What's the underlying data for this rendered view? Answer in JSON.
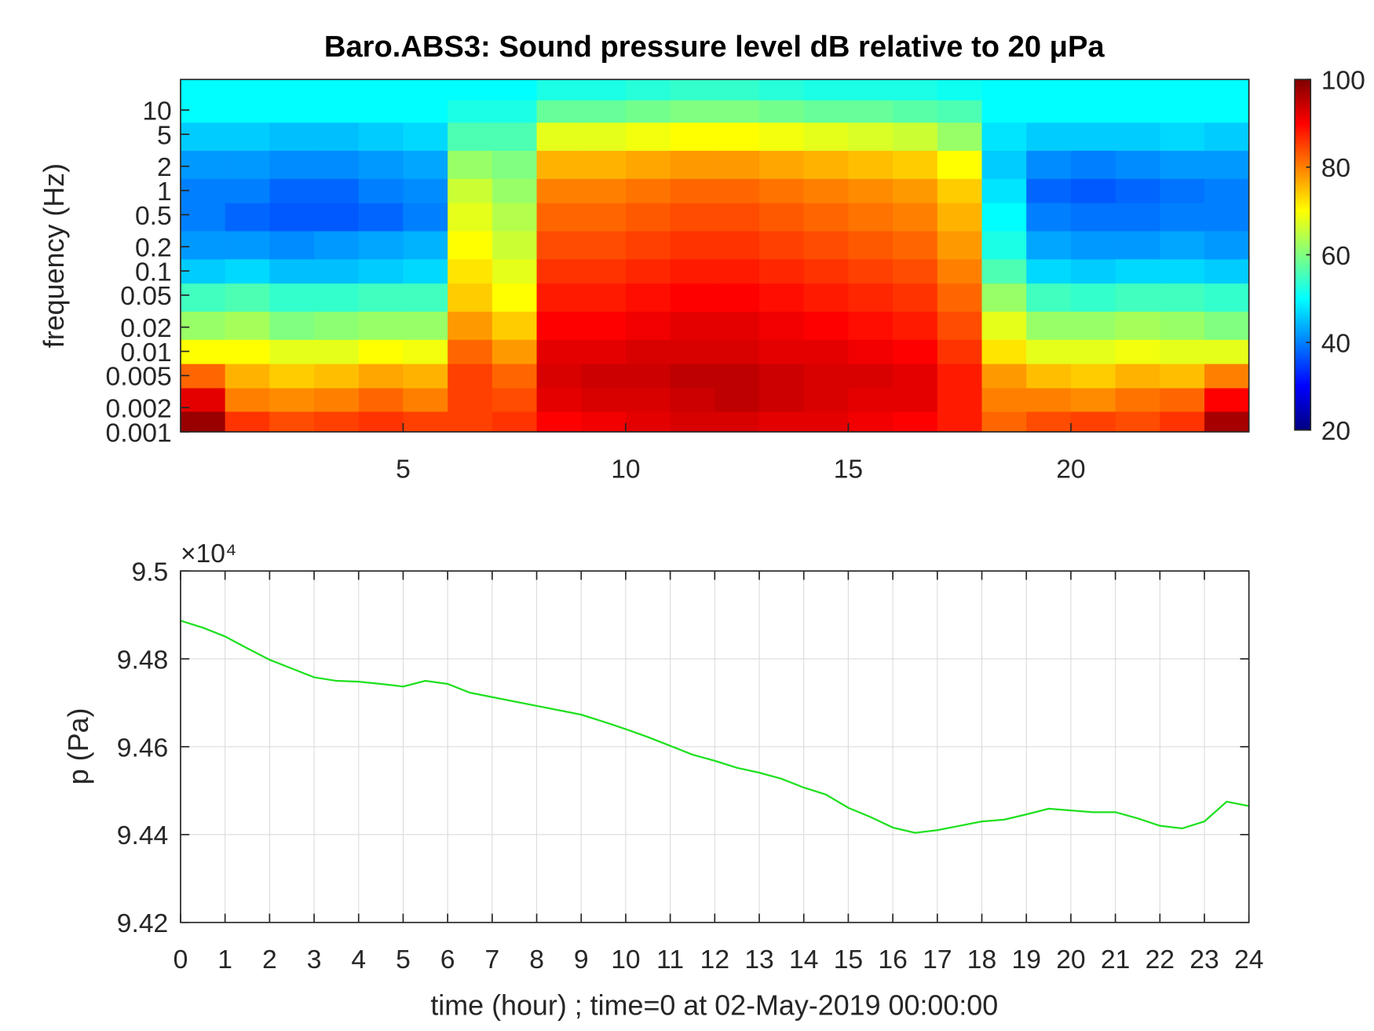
{
  "chart_data": [
    {
      "type": "heatmap",
      "title": "Baro.ABS3: Sound pressure level dB relative to 20 μPa",
      "y_label": "frequency (Hz)",
      "colormap": "jet",
      "x": [
        0.5,
        1.5,
        2.5,
        3.5,
        4.5,
        5.5,
        6.5,
        7.5,
        8.5,
        9.5,
        10.5,
        11.5,
        12.5,
        13.5,
        14.5,
        15.5,
        16.5,
        17.5,
        18.5,
        19.5,
        20.5,
        21.5,
        22.5,
        23.5
      ],
      "y": [
        0.0013,
        0.0025,
        0.005,
        0.01,
        0.02,
        0.05,
        0.1,
        0.2,
        0.5,
        1,
        2,
        5,
        10,
        18
      ],
      "z": [
        [
          98,
          86,
          84,
          85,
          86,
          85,
          85,
          86,
          90,
          91,
          92,
          93,
          93,
          92,
          92,
          91,
          90,
          88,
          82,
          84,
          85,
          84,
          86,
          97
        ],
        [
          92,
          80,
          79,
          80,
          82,
          80,
          85,
          84,
          92,
          93,
          93,
          94,
          95,
          94,
          93,
          92,
          92,
          88,
          80,
          80,
          79,
          81,
          82,
          90
        ],
        [
          82,
          76,
          74,
          75,
          77,
          76,
          85,
          82,
          93,
          94,
          94,
          95,
          95,
          94,
          93,
          93,
          92,
          88,
          78,
          75,
          74,
          76,
          75,
          80
        ],
        [
          70,
          70,
          68,
          68,
          70,
          69,
          82,
          78,
          92,
          92,
          93,
          93,
          93,
          92,
          92,
          91,
          90,
          86,
          72,
          68,
          68,
          69,
          68,
          68
        ],
        [
          62,
          63,
          60,
          61,
          62,
          62,
          78,
          74,
          90,
          90,
          91,
          92,
          92,
          91,
          90,
          89,
          88,
          84,
          68,
          62,
          62,
          63,
          62,
          60
        ],
        [
          55,
          56,
          54,
          54,
          55,
          55,
          74,
          70,
          88,
          88,
          89,
          90,
          90,
          89,
          88,
          87,
          86,
          82,
          62,
          55,
          54,
          55,
          55,
          54
        ],
        [
          46,
          47,
          45,
          45,
          46,
          47,
          72,
          68,
          86,
          86,
          87,
          88,
          88,
          87,
          86,
          85,
          84,
          80,
          56,
          47,
          46,
          47,
          47,
          46
        ],
        [
          42,
          42,
          41,
          42,
          43,
          44,
          70,
          66,
          84,
          84,
          85,
          86,
          86,
          85,
          84,
          83,
          82,
          78,
          52,
          43,
          42,
          42,
          43,
          42
        ],
        [
          40,
          38,
          37,
          37,
          38,
          40,
          68,
          64,
          82,
          82,
          83,
          84,
          84,
          83,
          82,
          81,
          80,
          76,
          50,
          40,
          39,
          39,
          40,
          40
        ],
        [
          40,
          40,
          38,
          38,
          40,
          41,
          66,
          62,
          80,
          80,
          81,
          82,
          82,
          81,
          80,
          79,
          78,
          74,
          48,
          38,
          37,
          38,
          39,
          40
        ],
        [
          42,
          42,
          41,
          41,
          42,
          43,
          62,
          60,
          76,
          76,
          77,
          78,
          78,
          77,
          76,
          75,
          74,
          70,
          46,
          41,
          40,
          41,
          42,
          42
        ],
        [
          46,
          46,
          45,
          45,
          46,
          47,
          56,
          56,
          68,
          68,
          69,
          70,
          70,
          69,
          68,
          67,
          66,
          62,
          48,
          46,
          46,
          46,
          47,
          46
        ],
        [
          50,
          50,
          50,
          50,
          50,
          50,
          52,
          52,
          58,
          58,
          59,
          60,
          60,
          59,
          58,
          58,
          57,
          56,
          50,
          50,
          50,
          50,
          50,
          50
        ],
        [
          50,
          50,
          50,
          50,
          50,
          50,
          50,
          50,
          52,
          52,
          53,
          54,
          54,
          53,
          52,
          52,
          52,
          51,
          50,
          50,
          50,
          50,
          50,
          50
        ]
      ],
      "xlim": [
        0,
        24
      ],
      "xticks": [
        5,
        10,
        15,
        20
      ],
      "ylim": [
        0.001,
        24
      ],
      "log_y": true,
      "yticks": [
        0.001,
        0.002,
        0.005,
        0.01,
        0.02,
        0.05,
        0.1,
        0.2,
        0.5,
        1,
        2,
        5,
        10
      ],
      "clim": [
        20,
        100
      ],
      "cticks": [
        20,
        40,
        60,
        80,
        100
      ]
    },
    {
      "type": "line",
      "x_label": "time (hour) ; time=0 at 02-May-2019 00:00:00",
      "y_label": "p (Pa)",
      "y_exponent_label": "×10⁴",
      "color": "#1ee01e",
      "grid": true,
      "x": [
        0,
        0.5,
        1,
        1.5,
        2,
        2.5,
        3,
        3.5,
        4,
        4.5,
        5,
        5.5,
        6,
        6.5,
        7,
        7.5,
        8,
        8.5,
        9,
        9.5,
        10,
        10.5,
        11,
        11.5,
        12,
        12.5,
        13,
        13.5,
        14,
        14.5,
        15,
        15.5,
        16,
        16.5,
        17,
        17.5,
        18,
        18.5,
        19,
        19.5,
        20,
        20.5,
        21,
        21.5,
        22,
        22.5,
        23,
        23.5,
        24
      ],
      "values": [
        94887,
        94871,
        94851,
        94824,
        94798,
        94778,
        94758,
        94750,
        94748,
        94743,
        94737,
        94750,
        94743,
        94723,
        94713,
        94703,
        94693,
        94683,
        94673,
        94657,
        94640,
        94622,
        94602,
        94582,
        94568,
        94552,
        94541,
        94527,
        94507,
        94491,
        94461,
        94440,
        94416,
        94404,
        94410,
        94420,
        94430,
        94434,
        94446,
        94459,
        94455,
        94451,
        94451,
        94437,
        94420,
        94414,
        94430,
        94475,
        94465
      ],
      "xlim": [
        0,
        24
      ],
      "xticks": [
        0,
        1,
        2,
        3,
        4,
        5,
        6,
        7,
        8,
        9,
        10,
        11,
        12,
        13,
        14,
        15,
        16,
        17,
        18,
        19,
        20,
        21,
        22,
        23,
        24
      ],
      "ylim": [
        94200,
        95000
      ],
      "yticks": [
        {
          "value": 94200,
          "label": "9.42"
        },
        {
          "value": 94400,
          "label": "9.44"
        },
        {
          "value": 94600,
          "label": "9.46"
        },
        {
          "value": 94800,
          "label": "9.48"
        },
        {
          "value": 95000,
          "label": "9.5"
        }
      ]
    }
  ]
}
